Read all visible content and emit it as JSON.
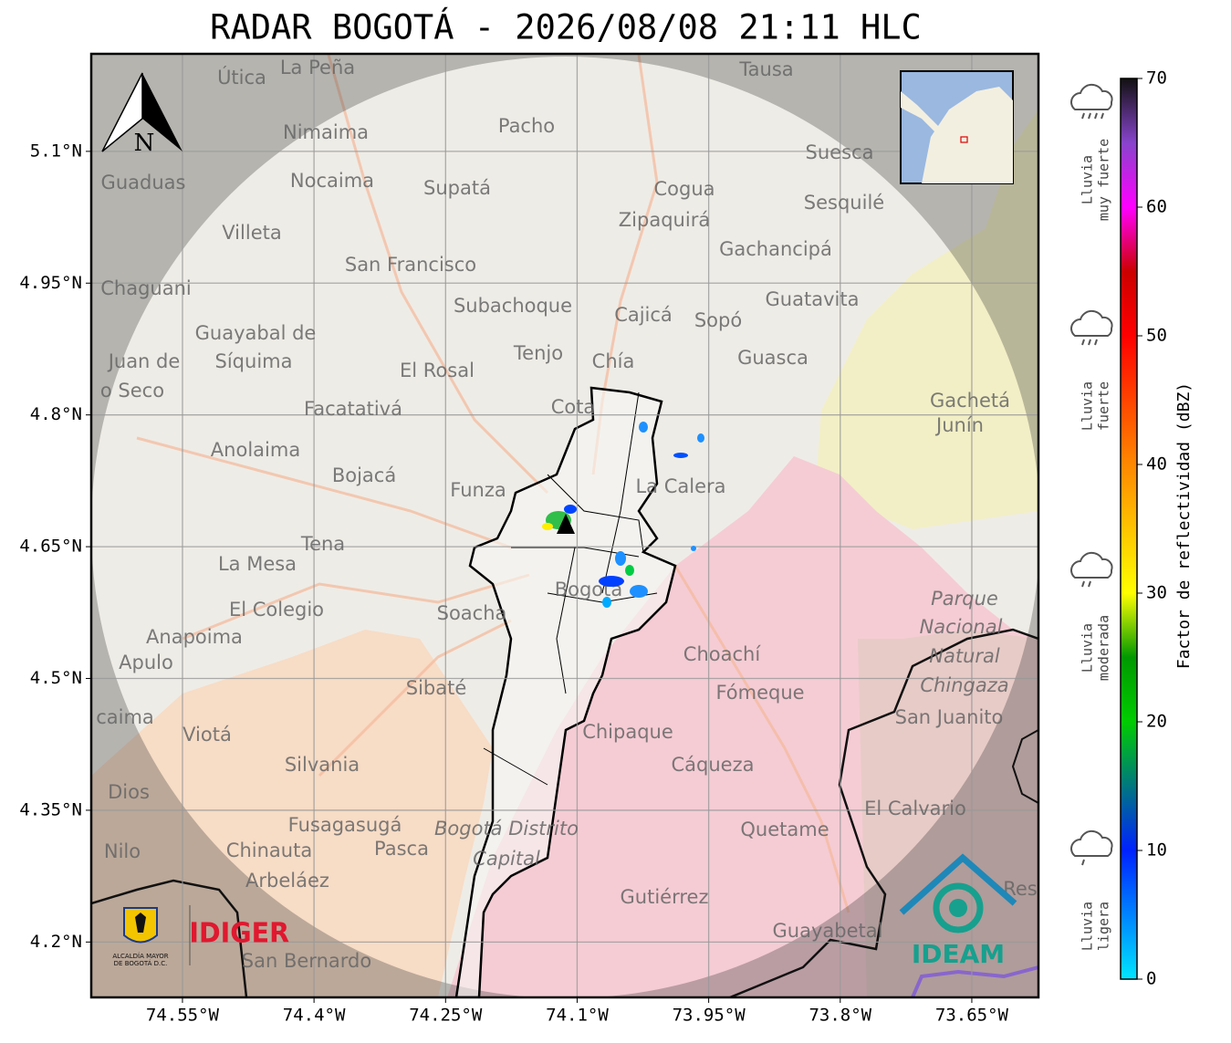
{
  "title": "RADAR BOGOTÁ - 2026/08/08 21:11 HLC",
  "map": {
    "xlim": [
      -74.654,
      -73.574
    ],
    "ylim": [
      4.137,
      5.211
    ],
    "xticks": [
      {
        "value": -74.55,
        "label": "74.55°W"
      },
      {
        "value": -74.4,
        "label": "74.4°W"
      },
      {
        "value": -74.25,
        "label": "74.25°W"
      },
      {
        "value": -74.1,
        "label": "74.1°W"
      },
      {
        "value": -73.95,
        "label": "73.95°W"
      },
      {
        "value": -73.8,
        "label": "73.8°W"
      },
      {
        "value": -73.65,
        "label": "73.65°W"
      }
    ],
    "yticks": [
      {
        "value": 5.1,
        "label": "5.1°N"
      },
      {
        "value": 4.95,
        "label": "4.95°N"
      },
      {
        "value": 4.8,
        "label": "4.8°N"
      },
      {
        "value": 4.65,
        "label": "4.65°N"
      },
      {
        "value": 4.5,
        "label": "4.5°N"
      },
      {
        "value": 4.35,
        "label": "4.35°N"
      },
      {
        "value": 4.2,
        "label": "4.2°N"
      }
    ],
    "grid": true,
    "north_label": "N",
    "places": [
      "La Peña",
      "Útica",
      "Tausa",
      "Pacho",
      "Nimaima",
      "Guaduas",
      "Nocaima",
      "Supatá",
      "Cogua",
      "Suesca",
      "Sesquilé",
      "Zipaquirá",
      "Villeta",
      "Gachancipá",
      "San Francisco",
      "Chaguani",
      "Guatavita",
      "Subachoque",
      "Cajicá",
      "Sopó",
      "Guayabal de",
      "Síquima",
      "Juan de",
      "o Seco",
      "Tenjo",
      "Chía",
      "Guasca",
      "El Rosal",
      "Gachetá",
      "Junín",
      "Facatativá",
      "Cota",
      "Anolaima",
      "Bojacá",
      "La Calera",
      "Funza",
      "Tena",
      "La Mesa",
      "El Colegio",
      "Soacha",
      "Bogotá",
      "Parque",
      "Nacional",
      "Anapoima",
      "Apulo",
      "Natural",
      "Choachí",
      "Chingaza",
      "Sibaté",
      "Fómeque",
      "San Juanito",
      "caima",
      "Viotá",
      "Chipaque",
      "Silvania",
      "Cáqueza",
      "Dios",
      "El Calvario",
      "Fusagasugá",
      "Bogotá Distrito",
      "Quetame",
      "Nilo",
      "Chinauta",
      "Pasca",
      "Capital",
      "Arbeláez",
      "Gutiérrez",
      "Res",
      "Guayabetal",
      "San Bernardo"
    ]
  },
  "logos": {
    "alcaldia": [
      "ALCALDÍA MAYOR",
      "DE BOGOTÁ D.C."
    ],
    "idiger": "IDIGER",
    "ideam": "IDEAM"
  },
  "colorbar": {
    "label": "Factor de reflectividad (dBZ)",
    "lim": [
      0,
      70
    ],
    "ticks": [
      0,
      10,
      20,
      30,
      40,
      50,
      60,
      70
    ],
    "stops": [
      {
        "value": 0,
        "color": "#00e5ff"
      },
      {
        "value": 10,
        "color": "#0022ff"
      },
      {
        "value": 20,
        "color": "#00cc00"
      },
      {
        "value": 25,
        "color": "#009900"
      },
      {
        "value": 30,
        "color": "#ffff00"
      },
      {
        "value": 40,
        "color": "#ff8800"
      },
      {
        "value": 50,
        "color": "#ff0000"
      },
      {
        "value": 55,
        "color": "#cc0000"
      },
      {
        "value": 60,
        "color": "#ff00ff"
      },
      {
        "value": 65,
        "color": "#8844cc"
      },
      {
        "value": 70,
        "color": "#111111"
      }
    ]
  },
  "legend_icons": [
    [
      "Lluvia",
      "muy fuerte"
    ],
    [
      "Lluvia",
      "fuerte"
    ],
    [
      "Lluvia",
      "moderada"
    ],
    [
      "Lluvia",
      "ligera"
    ]
  ]
}
